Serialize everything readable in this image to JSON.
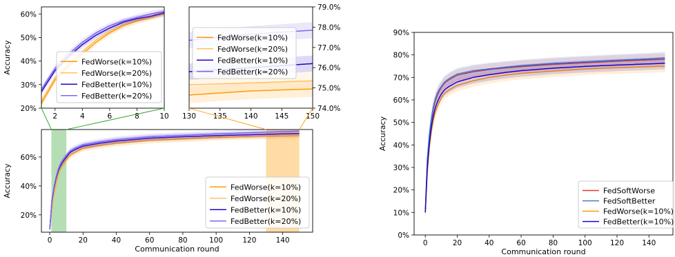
{
  "colors": {
    "fedworse10": "#ff9900",
    "fedworse20": "#ffc066",
    "fedbetter10": "#2200cc",
    "fedbetter20": "#7b68ee",
    "fedsoftworse": "#e8342c",
    "fedsoftbetter": "#3a7fd5",
    "green_zoom": "#2ca02c",
    "orange_zoom": "#ff9900"
  },
  "chart_data": [
    {
      "id": "main",
      "type": "line",
      "xlabel": "Communication round",
      "ylabel": "Accuracy",
      "xlim": [
        -5,
        158
      ],
      "ylim": [
        0.08,
        0.79
      ],
      "xticks": [
        "0",
        "20",
        "40",
        "60",
        "80",
        "100",
        "120",
        "140"
      ],
      "yticks": [
        "20%",
        "40%",
        "60%"
      ],
      "highlight_regions": [
        {
          "x": [
            1,
            10
          ],
          "color": "green"
        },
        {
          "x": [
            130,
            150
          ],
          "color": "orange"
        }
      ],
      "legend": "lower-right",
      "series": [
        {
          "name": "FedWorse(k=10%)",
          "x": [
            0,
            1,
            2,
            3,
            4,
            5,
            6,
            8,
            10,
            12,
            15,
            20,
            30,
            40,
            50,
            60,
            80,
            100,
            120,
            140,
            150
          ],
          "values": [
            0.1,
            0.22,
            0.3,
            0.37,
            0.42,
            0.47,
            0.51,
            0.55,
            0.58,
            0.61,
            0.63,
            0.66,
            0.68,
            0.695,
            0.705,
            0.715,
            0.725,
            0.735,
            0.742,
            0.748,
            0.75
          ]
        },
        {
          "name": "FedWorse(k=20%)",
          "x": [
            0,
            1,
            2,
            3,
            4,
            5,
            6,
            8,
            10,
            12,
            15,
            20,
            30,
            40,
            50,
            60,
            80,
            100,
            120,
            140,
            150
          ],
          "values": [
            0.1,
            0.23,
            0.31,
            0.38,
            0.43,
            0.48,
            0.52,
            0.56,
            0.59,
            0.615,
            0.635,
            0.665,
            0.685,
            0.7,
            0.71,
            0.72,
            0.73,
            0.74,
            0.746,
            0.751,
            0.753
          ]
        },
        {
          "name": "FedBetter(k=10%)",
          "x": [
            0,
            1,
            2,
            3,
            4,
            5,
            6,
            8,
            10,
            12,
            15,
            20,
            30,
            40,
            50,
            60,
            80,
            100,
            120,
            140,
            150
          ],
          "values": [
            0.1,
            0.27,
            0.35,
            0.41,
            0.46,
            0.5,
            0.53,
            0.57,
            0.6,
            0.63,
            0.65,
            0.675,
            0.695,
            0.71,
            0.72,
            0.73,
            0.74,
            0.748,
            0.754,
            0.76,
            0.762
          ]
        },
        {
          "name": "FedBetter(k=20%)",
          "x": [
            0,
            1,
            2,
            3,
            4,
            5,
            6,
            8,
            10,
            12,
            15,
            20,
            30,
            40,
            50,
            60,
            80,
            100,
            120,
            140,
            150
          ],
          "values": [
            0.1,
            0.28,
            0.36,
            0.42,
            0.47,
            0.51,
            0.54,
            0.58,
            0.61,
            0.64,
            0.66,
            0.685,
            0.705,
            0.72,
            0.73,
            0.74,
            0.75,
            0.76,
            0.768,
            0.776,
            0.779
          ]
        }
      ]
    },
    {
      "id": "zoom_left",
      "type": "line",
      "xlim": [
        1,
        10
      ],
      "ylim": [
        0.2,
        0.63
      ],
      "xticks": [
        "2",
        "4",
        "6",
        "8",
        "10"
      ],
      "yticks": [
        "20%",
        "30%",
        "40%",
        "50%",
        "60%"
      ],
      "ylabel": "Accuracy",
      "legend": "lower-right",
      "series": [
        {
          "name": "FedWorse(k=10%)",
          "x": [
            1,
            2,
            3,
            4,
            5,
            6,
            7,
            8,
            9,
            10
          ],
          "values": [
            0.22,
            0.32,
            0.38,
            0.43,
            0.48,
            0.52,
            0.55,
            0.57,
            0.585,
            0.6
          ]
        },
        {
          "name": "FedWorse(k=20%)",
          "x": [
            1,
            2,
            3,
            4,
            5,
            6,
            7,
            8,
            9,
            10
          ],
          "values": [
            0.23,
            0.33,
            0.39,
            0.44,
            0.49,
            0.525,
            0.555,
            0.575,
            0.59,
            0.605
          ]
        },
        {
          "name": "FedBetter(k=10%)",
          "x": [
            1,
            2,
            3,
            4,
            5,
            6,
            7,
            8,
            9,
            10
          ],
          "values": [
            0.27,
            0.36,
            0.42,
            0.47,
            0.51,
            0.54,
            0.565,
            0.58,
            0.59,
            0.605
          ]
        },
        {
          "name": "FedBetter(k=20%)",
          "x": [
            1,
            2,
            3,
            4,
            5,
            6,
            7,
            8,
            9,
            10
          ],
          "values": [
            0.28,
            0.37,
            0.43,
            0.48,
            0.52,
            0.55,
            0.57,
            0.585,
            0.6,
            0.61
          ]
        }
      ]
    },
    {
      "id": "zoom_right",
      "type": "line",
      "xlim": [
        130,
        150
      ],
      "ylim": [
        0.74,
        0.79
      ],
      "xticks": [
        "130",
        "135",
        "140",
        "145",
        "150"
      ],
      "yticks": [
        "74.0%",
        "75.0%",
        "76.0%",
        "77.0%",
        "78.0%",
        "79.0%"
      ],
      "legend": "upper-left",
      "series": [
        {
          "name": "FedWorse(k=10%)",
          "x": [
            130,
            135,
            140,
            145,
            150
          ],
          "values": [
            0.7465,
            0.7475,
            0.7485,
            0.749,
            0.7495
          ]
        },
        {
          "name": "FedWorse(k=20%)",
          "x": [
            130,
            135,
            140,
            145,
            150
          ],
          "values": [
            0.7515,
            0.752,
            0.7525,
            0.753,
            0.7535
          ]
        },
        {
          "name": "FedBetter(k=10%)",
          "x": [
            130,
            135,
            140,
            145,
            150
          ],
          "values": [
            0.758,
            0.759,
            0.76,
            0.761,
            0.762
          ]
        },
        {
          "name": "FedBetter(k=20%)",
          "x": [
            130,
            135,
            140,
            145,
            150
          ],
          "values": [
            0.7735,
            0.775,
            0.7765,
            0.7775,
            0.7785
          ]
        }
      ]
    },
    {
      "id": "right",
      "type": "line",
      "xlabel": "Communication round",
      "ylabel": "Accuracy",
      "xlim": [
        -7,
        155
      ],
      "ylim": [
        0,
        0.9
      ],
      "xticks": [
        "0",
        "20",
        "40",
        "60",
        "80",
        "100",
        "120",
        "140"
      ],
      "yticks": [
        "0%",
        "10%",
        "20%",
        "30%",
        "40%",
        "50%",
        "60%",
        "70%",
        "80%",
        "90%"
      ],
      "legend": "lower-right",
      "series": [
        {
          "name": "FedSoftWorse",
          "x": [
            0,
            1,
            2,
            3,
            4,
            5,
            6,
            8,
            10,
            12,
            15,
            20,
            30,
            40,
            50,
            60,
            80,
            100,
            120,
            140,
            150
          ],
          "values": [
            0.1,
            0.3,
            0.4,
            0.47,
            0.52,
            0.56,
            0.59,
            0.63,
            0.655,
            0.675,
            0.69,
            0.71,
            0.725,
            0.735,
            0.742,
            0.748,
            0.758,
            0.765,
            0.772,
            0.778,
            0.78
          ]
        },
        {
          "name": "FedSoftBetter",
          "x": [
            0,
            1,
            2,
            3,
            4,
            5,
            6,
            8,
            10,
            12,
            15,
            20,
            30,
            40,
            50,
            60,
            80,
            100,
            120,
            140,
            150
          ],
          "values": [
            0.1,
            0.31,
            0.41,
            0.48,
            0.53,
            0.57,
            0.6,
            0.64,
            0.66,
            0.68,
            0.695,
            0.715,
            0.73,
            0.738,
            0.745,
            0.752,
            0.762,
            0.769,
            0.776,
            0.782,
            0.787
          ]
        },
        {
          "name": "FedWorse(k=10%)",
          "x": [
            0,
            1,
            2,
            3,
            4,
            5,
            6,
            8,
            10,
            12,
            15,
            20,
            30,
            40,
            50,
            60,
            80,
            100,
            120,
            140,
            150
          ],
          "values": [
            0.1,
            0.25,
            0.35,
            0.42,
            0.47,
            0.51,
            0.54,
            0.58,
            0.61,
            0.63,
            0.645,
            0.665,
            0.685,
            0.7,
            0.71,
            0.718,
            0.728,
            0.737,
            0.743,
            0.748,
            0.75
          ]
        },
        {
          "name": "FedBetter(k=10%)",
          "x": [
            0,
            1,
            2,
            3,
            4,
            5,
            6,
            8,
            10,
            12,
            15,
            20,
            30,
            40,
            50,
            60,
            80,
            100,
            120,
            140,
            150
          ],
          "values": [
            0.1,
            0.27,
            0.37,
            0.44,
            0.49,
            0.53,
            0.56,
            0.6,
            0.625,
            0.645,
            0.66,
            0.68,
            0.7,
            0.712,
            0.722,
            0.73,
            0.741,
            0.749,
            0.755,
            0.76,
            0.763
          ]
        }
      ]
    }
  ]
}
